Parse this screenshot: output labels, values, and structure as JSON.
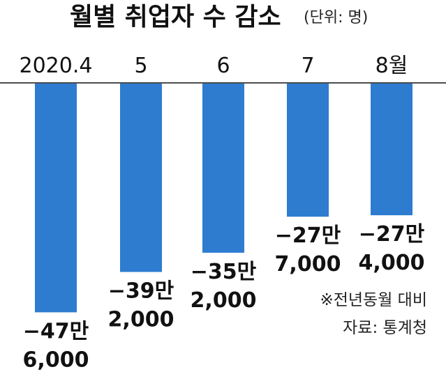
{
  "chart_data": {
    "type": "bar",
    "title": "월별 취업자 수 감소",
    "unit_label": "(단위: 명)",
    "categories": [
      "2020.4",
      "5",
      "6",
      "7",
      "8월"
    ],
    "values": [
      -476000,
      -392000,
      -352000,
      -277000,
      -274000
    ],
    "value_labels": [
      [
        "−47만",
        "6,000"
      ],
      [
        "−39만",
        "2,000"
      ],
      [
        "−35만",
        "2,000"
      ],
      [
        "−27만",
        "7,000"
      ],
      [
        "−27만",
        "4,000"
      ]
    ],
    "xlabel": "",
    "ylabel": "",
    "ylim": [
      -500000,
      0
    ],
    "grid": false,
    "legend": "none",
    "bar_color": "#2d7cd0",
    "notes": [
      "※전년동월 대비",
      "자료: 통계청"
    ]
  }
}
